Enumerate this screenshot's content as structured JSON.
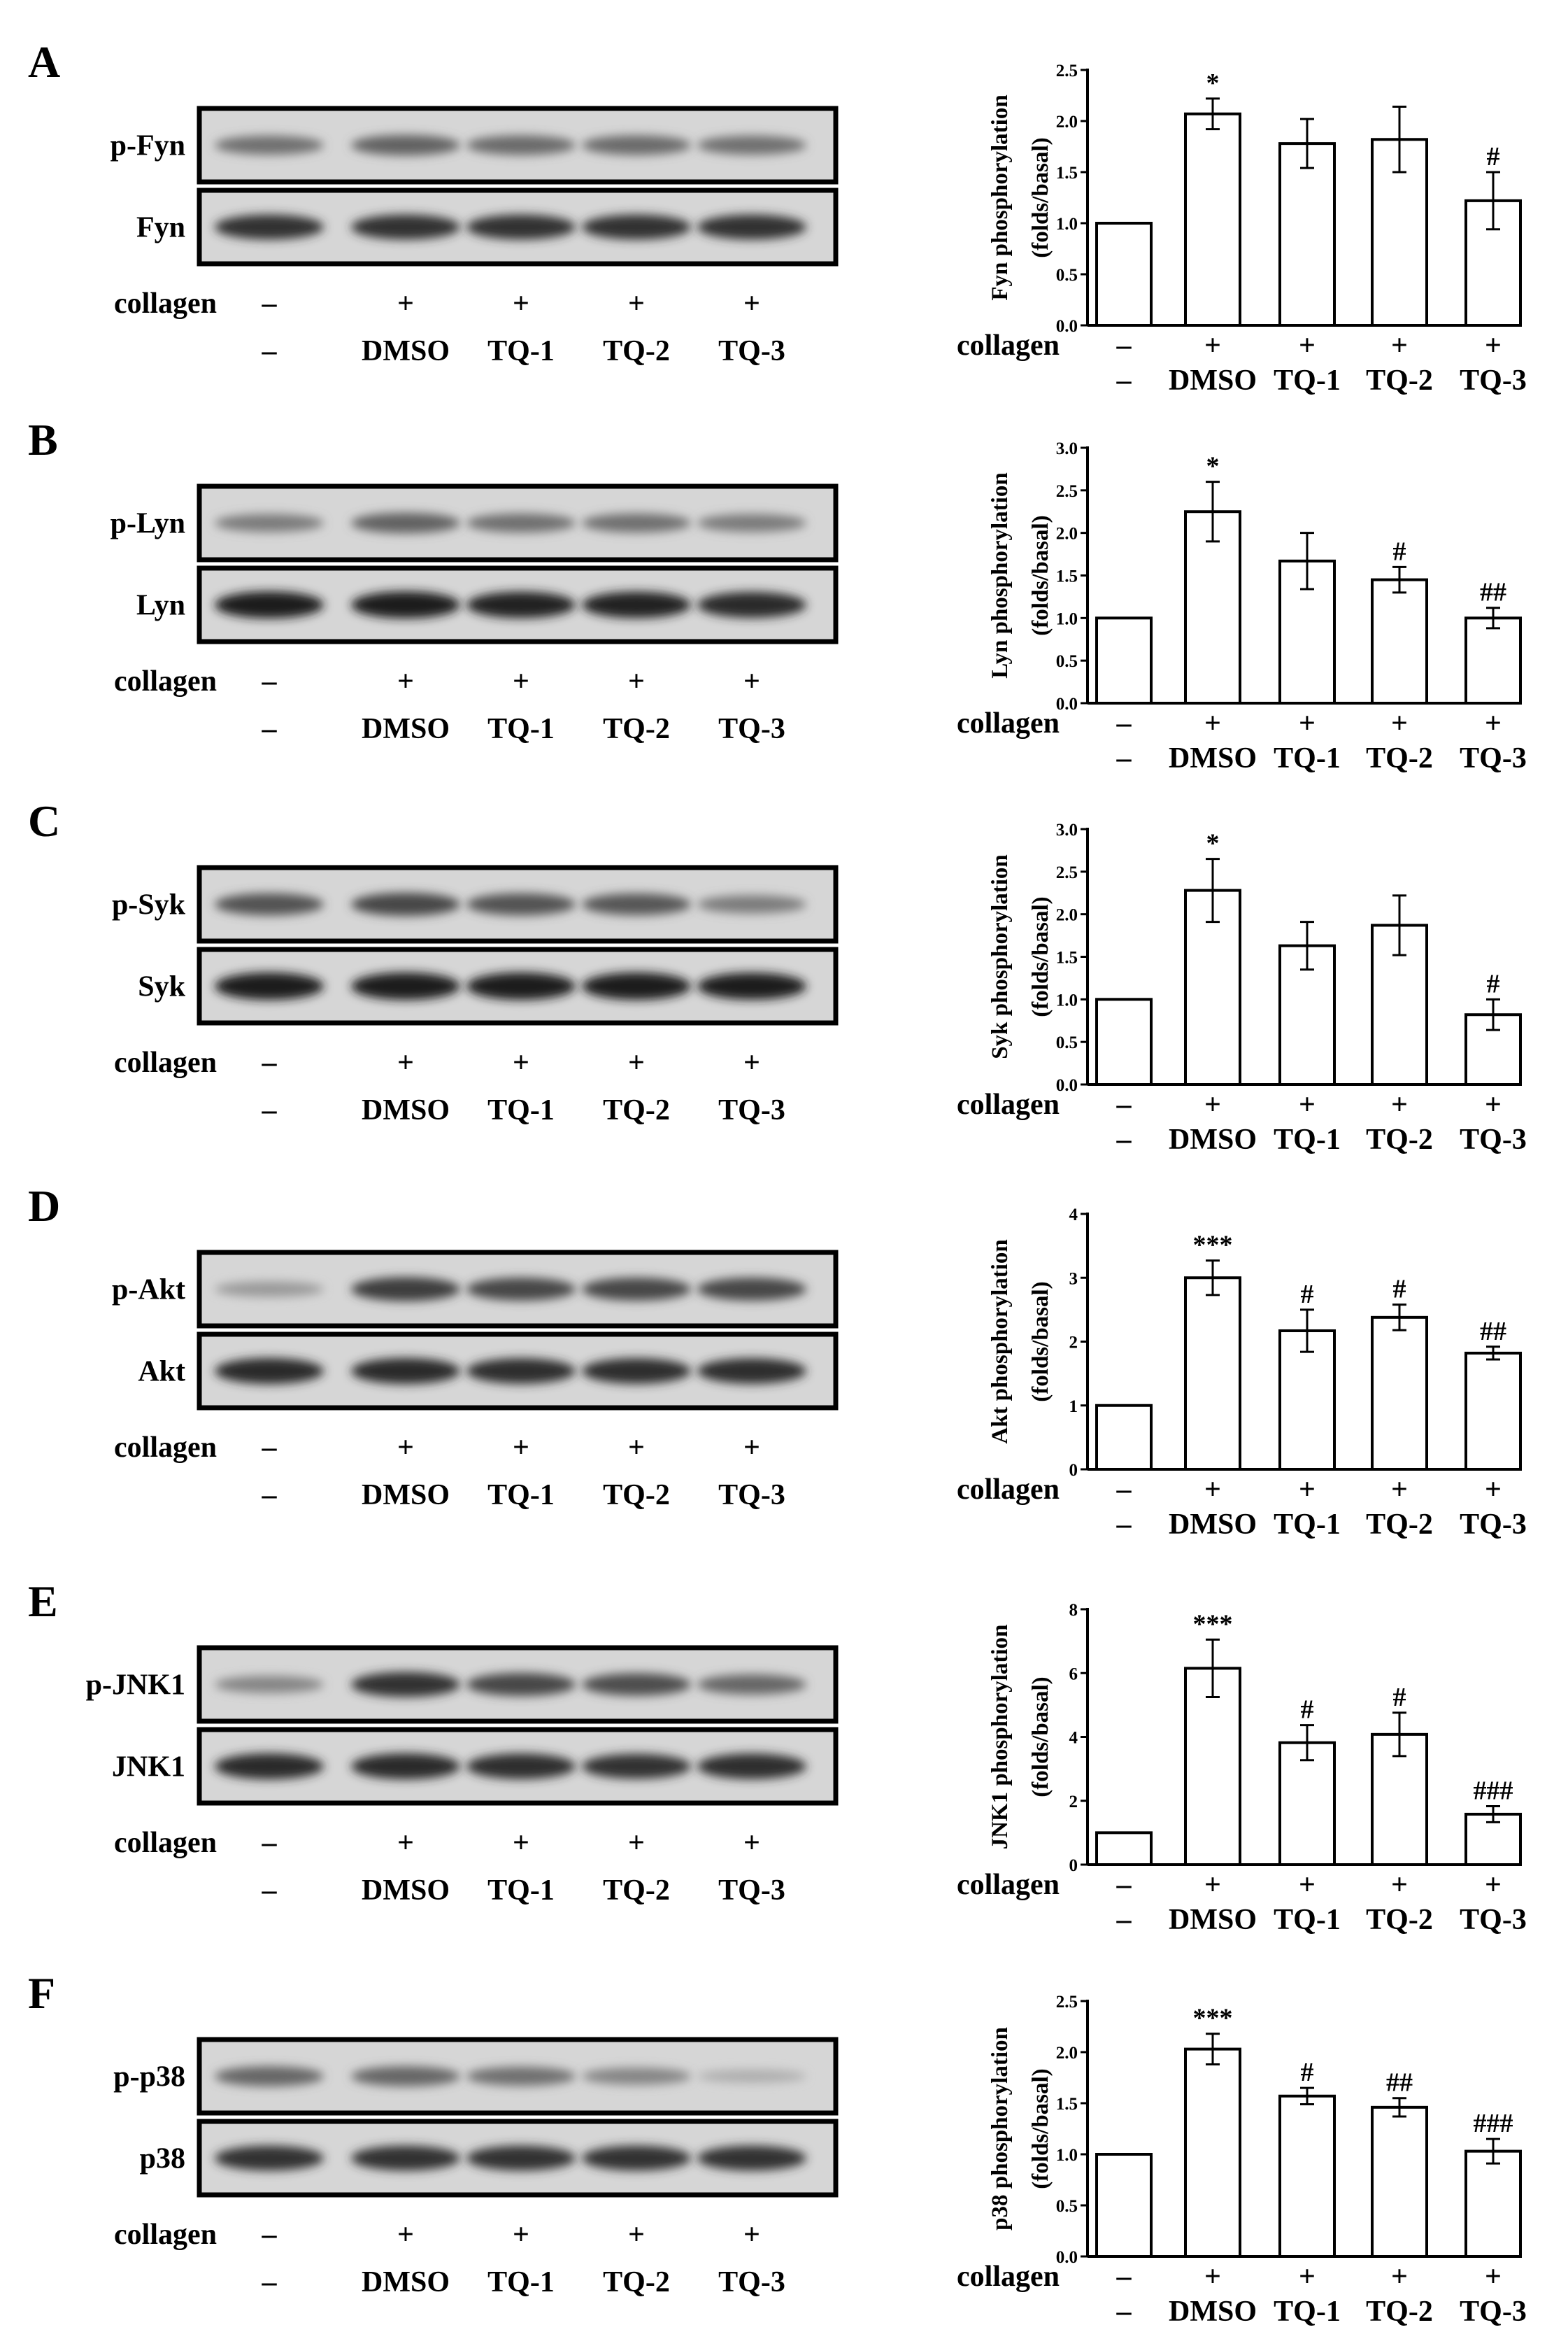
{
  "figure": {
    "collagen_label": "collagen",
    "collagen_marks": [
      "–",
      "+",
      "+",
      "+",
      "+"
    ],
    "treatments": [
      "–",
      "DMSO",
      "TQ-1",
      "TQ-2",
      "TQ-3"
    ]
  },
  "panels": [
    {
      "letter": "A",
      "blot_top_label": "p-Fyn",
      "blot_bottom_label": "Fyn",
      "band_intensity_top": [
        0.55,
        0.62,
        0.58,
        0.58,
        0.55
      ],
      "band_intensity_bottom": [
        0.85,
        0.85,
        0.85,
        0.85,
        0.85
      ]
    },
    {
      "letter": "B",
      "blot_top_label": "p-Lyn",
      "blot_bottom_label": "Lyn",
      "band_intensity_top": [
        0.5,
        0.62,
        0.55,
        0.55,
        0.5
      ],
      "band_intensity_bottom": [
        0.95,
        0.95,
        0.92,
        0.92,
        0.9
      ]
    },
    {
      "letter": "C",
      "blot_top_label": "p-Syk",
      "blot_bottom_label": "Syk",
      "band_intensity_top": [
        0.7,
        0.75,
        0.7,
        0.68,
        0.5
      ],
      "band_intensity_bottom": [
        0.97,
        0.97,
        0.97,
        0.97,
        0.95
      ]
    },
    {
      "letter": "D",
      "blot_top_label": "p-Akt",
      "blot_bottom_label": "Akt",
      "band_intensity_top": [
        0.35,
        0.8,
        0.75,
        0.75,
        0.75
      ],
      "band_intensity_bottom": [
        0.9,
        0.9,
        0.88,
        0.88,
        0.88
      ]
    },
    {
      "letter": "E",
      "blot_top_label": "p-JNK1",
      "blot_bottom_label": "JNK1",
      "band_intensity_top": [
        0.45,
        0.85,
        0.75,
        0.72,
        0.6
      ],
      "band_intensity_bottom": [
        0.9,
        0.9,
        0.88,
        0.85,
        0.88
      ]
    },
    {
      "letter": "F",
      "blot_top_label": "p-p38",
      "blot_bottom_label": "p38",
      "band_intensity_top": [
        0.6,
        0.6,
        0.55,
        0.45,
        0.25
      ],
      "band_intensity_bottom": [
        0.85,
        0.85,
        0.85,
        0.85,
        0.85
      ]
    }
  ],
  "chart_data": [
    {
      "type": "bar",
      "ylabel": "Fyn phosphorylation (folds/basal)",
      "categories": [
        "–",
        "DMSO",
        "TQ-1",
        "TQ-2",
        "TQ-3"
      ],
      "values": [
        1.0,
        2.07,
        1.78,
        1.82,
        1.22
      ],
      "errors": [
        0,
        0.15,
        0.24,
        0.32,
        0.28
      ],
      "significance": [
        "",
        "*",
        "",
        "",
        "#"
      ],
      "ylim": [
        0,
        2.5
      ],
      "yticks": [
        "0.0",
        "0.5",
        "1.0",
        "1.5",
        "2.0",
        "2.5"
      ],
      "ytick_values": [
        0,
        0.5,
        1.0,
        1.5,
        2.0,
        2.5
      ]
    },
    {
      "type": "bar",
      "ylabel": "Lyn phosphorylation (folds/basal)",
      "categories": [
        "–",
        "DMSO",
        "TQ-1",
        "TQ-2",
        "TQ-3"
      ],
      "values": [
        1.0,
        2.25,
        1.67,
        1.45,
        1.0
      ],
      "errors": [
        0,
        0.35,
        0.33,
        0.15,
        0.12
      ],
      "significance": [
        "",
        "*",
        "",
        "#",
        "##"
      ],
      "ylim": [
        0,
        3.0
      ],
      "yticks": [
        "0.0",
        "0.5",
        "1.0",
        "1.5",
        "2.0",
        "2.5",
        "3.0"
      ],
      "ytick_values": [
        0,
        0.5,
        1.0,
        1.5,
        2.0,
        2.5,
        3.0
      ]
    },
    {
      "type": "bar",
      "ylabel": "Syk phosphorylation (folds/basal)",
      "categories": [
        "–",
        "DMSO",
        "TQ-1",
        "TQ-2",
        "TQ-3"
      ],
      "values": [
        1.0,
        2.28,
        1.63,
        1.87,
        0.82
      ],
      "errors": [
        0,
        0.37,
        0.28,
        0.35,
        0.18
      ],
      "significance": [
        "",
        "*",
        "",
        "",
        "#"
      ],
      "ylim": [
        0,
        3.0
      ],
      "yticks": [
        "0.0",
        "0.5",
        "1.0",
        "1.5",
        "2.0",
        "2.5",
        "3.0"
      ],
      "ytick_values": [
        0,
        0.5,
        1.0,
        1.5,
        2.0,
        2.5,
        3.0
      ]
    },
    {
      "type": "bar",
      "ylabel": "Akt phosphorylation (folds/basal)",
      "categories": [
        "–",
        "DMSO",
        "TQ-1",
        "TQ-2",
        "TQ-3"
      ],
      "values": [
        1.0,
        3.0,
        2.17,
        2.38,
        1.82
      ],
      "errors": [
        0,
        0.27,
        0.33,
        0.2,
        0.1
      ],
      "significance": [
        "",
        "***",
        "#",
        "#",
        "##"
      ],
      "ylim": [
        0,
        4
      ],
      "yticks": [
        "0",
        "1",
        "2",
        "3",
        "4"
      ],
      "ytick_values": [
        0,
        1,
        2,
        3,
        4
      ]
    },
    {
      "type": "bar",
      "ylabel": "JNK1 phosphorylation (folds/basal)",
      "categories": [
        "–",
        "DMSO",
        "TQ-1",
        "TQ-2",
        "TQ-3"
      ],
      "values": [
        1.0,
        6.15,
        3.82,
        4.08,
        1.58
      ],
      "errors": [
        0,
        0.9,
        0.55,
        0.68,
        0.25
      ],
      "significance": [
        "",
        "***",
        "#",
        "#",
        "###"
      ],
      "ylim": [
        0,
        8
      ],
      "yticks": [
        "0",
        "2",
        "4",
        "6",
        "8"
      ],
      "ytick_values": [
        0,
        2,
        4,
        6,
        8
      ]
    },
    {
      "type": "bar",
      "ylabel": "p38 phosphorylation (folds/basal)",
      "categories": [
        "–",
        "DMSO",
        "TQ-1",
        "TQ-2",
        "TQ-3"
      ],
      "values": [
        1.0,
        2.03,
        1.57,
        1.46,
        1.03
      ],
      "errors": [
        0,
        0.15,
        0.08,
        0.09,
        0.12
      ],
      "significance": [
        "",
        "***",
        "#",
        "##",
        "###"
      ],
      "ylim": [
        0,
        2.5
      ],
      "yticks": [
        "0.0",
        "0.5",
        "1.0",
        "1.5",
        "2.0",
        "2.5"
      ],
      "ytick_values": [
        0,
        0.5,
        1.0,
        1.5,
        2.0,
        2.5
      ]
    }
  ]
}
